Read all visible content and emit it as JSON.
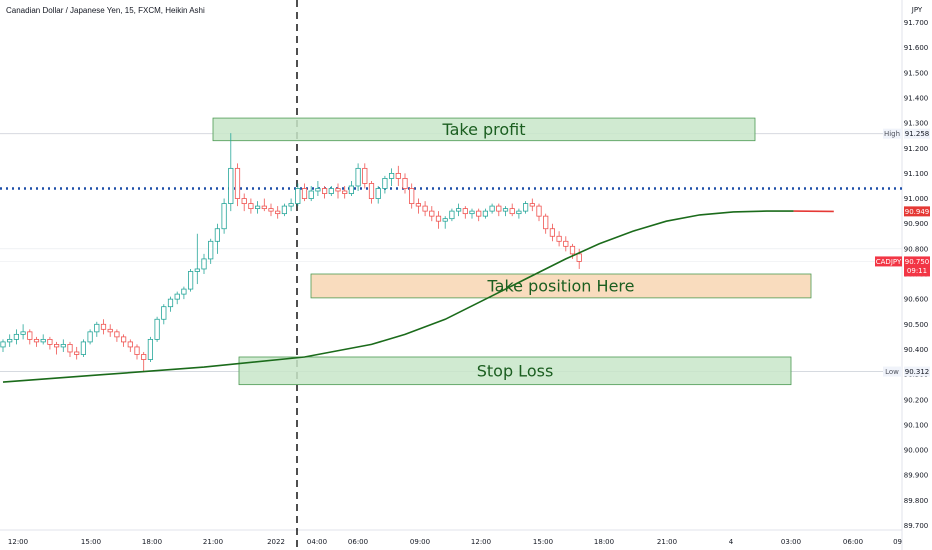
{
  "header": {
    "legend": "Canadian Dollar / Japanese Yen, 15, FXCM, Heikin Ashi"
  },
  "price_axis": {
    "currency": "JPY",
    "ticks": [
      "91.700",
      "91.600",
      "91.500",
      "91.400",
      "91.300",
      "91.200",
      "91.100",
      "91.000",
      "90.900",
      "90.800",
      "90.700",
      "90.600",
      "90.500",
      "90.400",
      "90.300",
      "90.200",
      "90.100",
      "90.000",
      "89.900",
      "89.800",
      "89.700"
    ]
  },
  "time_axis": {
    "ticks": [
      "12:00",
      "15:00",
      "18:00",
      "21:00",
      "2022",
      "04:00",
      "06:00",
      "09:00",
      "12:00",
      "15:00",
      "18:00",
      "21:00",
      "4",
      "03:00",
      "06:00",
      "09"
    ]
  },
  "badges": {
    "high": {
      "label": "High",
      "value": "91.258"
    },
    "low": {
      "label": "Low",
      "value": "90.312"
    },
    "red_value": "90.949",
    "symbol": "CADJPY",
    "last_value": "90.750",
    "countdown": "09:11"
  },
  "annotations": {
    "take_profit": "Take profit",
    "take_position": "Take position Here",
    "stop_loss": "Stop Loss"
  },
  "colors": {
    "up": "#26a69a",
    "down": "#ef5350",
    "ma": "#1b6b1b",
    "ma_tail": "#e53935",
    "dotted_line": "#1e4fa8",
    "zone_green": "#c8e6c9",
    "zone_orange": "#f8d6b3"
  },
  "chart_data": {
    "type": "candlestick",
    "chart_style": "Heikin Ashi",
    "symbol": "CADJPY",
    "interval": "15",
    "source": "FXCM",
    "ylim": [
      89.68,
      91.76
    ],
    "y_ticks": [
      91.7,
      91.6,
      91.5,
      91.4,
      91.3,
      91.2,
      91.1,
      91.0,
      90.9,
      90.8,
      90.7,
      90.6,
      90.5,
      90.4,
      90.3,
      90.2,
      90.1,
      90.0,
      89.9,
      89.8,
      89.7
    ],
    "high": 91.258,
    "low": 90.312,
    "last_close": 90.75,
    "moving_average_last": 90.949,
    "horizontal_line": 91.04,
    "zones": [
      {
        "label": "Take profit",
        "from": 91.23,
        "to": 91.32
      },
      {
        "label": "Take position Here",
        "from": 90.605,
        "to": 90.7
      },
      {
        "label": "Stop Loss",
        "from": 90.26,
        "to": 90.37
      }
    ],
    "candles": [
      [
        90.41,
        90.44,
        90.39,
        90.43
      ],
      [
        90.43,
        90.46,
        90.41,
        90.44
      ],
      [
        90.44,
        90.48,
        90.42,
        90.46
      ],
      [
        90.46,
        90.5,
        90.44,
        90.47
      ],
      [
        90.47,
        90.48,
        90.42,
        90.44
      ],
      [
        90.44,
        90.45,
        90.41,
        90.43
      ],
      [
        90.43,
        90.46,
        90.42,
        90.44
      ],
      [
        90.44,
        90.45,
        90.4,
        90.42
      ],
      [
        90.42,
        90.43,
        90.38,
        90.41
      ],
      [
        90.41,
        90.44,
        90.39,
        90.42
      ],
      [
        90.42,
        90.43,
        90.37,
        90.39
      ],
      [
        90.39,
        90.41,
        90.36,
        90.38
      ],
      [
        90.38,
        90.44,
        90.37,
        90.43
      ],
      [
        90.43,
        90.48,
        90.42,
        90.47
      ],
      [
        90.47,
        90.51,
        90.45,
        90.5
      ],
      [
        90.5,
        90.52,
        90.46,
        90.48
      ],
      [
        90.48,
        90.5,
        90.45,
        90.47
      ],
      [
        90.47,
        90.48,
        90.43,
        90.45
      ],
      [
        90.45,
        90.46,
        90.41,
        90.43
      ],
      [
        90.43,
        90.44,
        90.39,
        90.41
      ],
      [
        90.41,
        90.42,
        90.36,
        90.38
      ],
      [
        90.38,
        90.39,
        90.31,
        90.36
      ],
      [
        90.36,
        90.45,
        90.35,
        90.44
      ],
      [
        90.44,
        90.53,
        90.43,
        90.52
      ],
      [
        90.52,
        90.58,
        90.5,
        90.57
      ],
      [
        90.57,
        90.61,
        90.55,
        90.6
      ],
      [
        90.6,
        90.63,
        90.58,
        90.62
      ],
      [
        90.62,
        90.65,
        90.6,
        90.64
      ],
      [
        90.64,
        90.72,
        90.63,
        90.71
      ],
      [
        90.71,
        90.86,
        90.66,
        90.72
      ],
      [
        90.72,
        90.78,
        90.7,
        90.76
      ],
      [
        90.76,
        90.84,
        90.74,
        90.83
      ],
      [
        90.83,
        90.9,
        90.78,
        90.88
      ],
      [
        90.88,
        91.0,
        90.86,
        90.98
      ],
      [
        90.98,
        91.26,
        90.95,
        91.12
      ],
      [
        91.12,
        91.14,
        90.97,
        91.0
      ],
      [
        91.0,
        91.02,
        90.95,
        90.98
      ],
      [
        90.98,
        91.0,
        90.94,
        90.96
      ],
      [
        90.96,
        90.99,
        90.94,
        90.97
      ],
      [
        90.97,
        91.0,
        90.95,
        90.96
      ],
      [
        90.96,
        90.98,
        90.93,
        90.95
      ],
      [
        90.95,
        90.97,
        90.92,
        90.94
      ],
      [
        90.94,
        90.98,
        90.93,
        90.97
      ],
      [
        90.97,
        91.0,
        90.95,
        90.98
      ],
      [
        90.98,
        91.06,
        90.97,
        91.04
      ],
      [
        91.04,
        91.06,
        90.99,
        91.0
      ],
      [
        91.0,
        91.05,
        90.99,
        91.03
      ],
      [
        91.03,
        91.07,
        91.01,
        91.04
      ],
      [
        91.04,
        91.05,
        91.0,
        91.02
      ],
      [
        91.02,
        91.05,
        91.01,
        91.04
      ],
      [
        91.04,
        91.06,
        91.0,
        91.03
      ],
      [
        91.03,
        91.05,
        91.0,
        91.02
      ],
      [
        91.02,
        91.07,
        91.01,
        91.05
      ],
      [
        91.05,
        91.14,
        91.03,
        91.12
      ],
      [
        91.12,
        91.14,
        91.04,
        91.06
      ],
      [
        91.06,
        91.07,
        90.98,
        91.0
      ],
      [
        91.0,
        91.05,
        90.98,
        91.04
      ],
      [
        91.04,
        91.09,
        91.02,
        91.08
      ],
      [
        91.08,
        91.12,
        91.05,
        91.1
      ],
      [
        91.1,
        91.13,
        91.05,
        91.08
      ],
      [
        91.08,
        91.1,
        91.02,
        91.04
      ],
      [
        91.04,
        91.06,
        90.96,
        90.98
      ],
      [
        90.98,
        91.0,
        90.94,
        90.97
      ],
      [
        90.97,
        90.99,
        90.93,
        90.95
      ],
      [
        90.95,
        90.97,
        90.91,
        90.93
      ],
      [
        90.93,
        90.95,
        90.88,
        90.91
      ],
      [
        90.91,
        90.93,
        90.88,
        90.92
      ],
      [
        90.92,
        90.96,
        90.91,
        90.95
      ],
      [
        90.95,
        90.98,
        90.93,
        90.96
      ],
      [
        90.96,
        90.97,
        90.92,
        90.94
      ],
      [
        90.94,
        90.96,
        90.92,
        90.95
      ],
      [
        90.95,
        90.96,
        90.91,
        90.93
      ],
      [
        90.93,
        90.96,
        90.92,
        90.95
      ],
      [
        90.95,
        90.98,
        90.94,
        90.97
      ],
      [
        90.97,
        90.98,
        90.93,
        90.95
      ],
      [
        90.95,
        90.97,
        90.93,
        90.96
      ],
      [
        90.96,
        90.98,
        90.93,
        90.94
      ],
      [
        90.94,
        90.96,
        90.92,
        90.95
      ],
      [
        90.95,
        90.99,
        90.94,
        90.98
      ],
      [
        90.98,
        91.0,
        90.95,
        90.97
      ],
      [
        90.97,
        90.98,
        90.91,
        90.93
      ],
      [
        90.93,
        90.94,
        90.86,
        90.88
      ],
      [
        90.88,
        90.9,
        90.83,
        90.85
      ],
      [
        90.85,
        90.87,
        90.81,
        90.83
      ],
      [
        90.83,
        90.85,
        90.79,
        90.81
      ],
      [
        90.81,
        90.82,
        90.76,
        90.78
      ],
      [
        90.78,
        90.8,
        90.72,
        90.75
      ]
    ],
    "moving_average": [
      [
        0,
        90.27
      ],
      [
        15,
        90.3
      ],
      [
        30,
        90.33
      ],
      [
        45,
        90.37
      ],
      [
        55,
        90.42
      ],
      [
        60,
        90.46
      ],
      [
        66,
        90.52
      ],
      [
        72,
        90.6
      ],
      [
        78,
        90.68
      ],
      [
        84,
        90.76
      ],
      [
        89,
        90.82
      ],
      [
        94,
        90.87
      ],
      [
        99,
        90.91
      ],
      [
        104,
        90.935
      ],
      [
        109,
        90.947
      ],
      [
        114,
        90.95
      ],
      [
        118,
        90.95
      ],
      [
        124,
        90.949
      ]
    ],
    "ma_tail_from": 118
  }
}
